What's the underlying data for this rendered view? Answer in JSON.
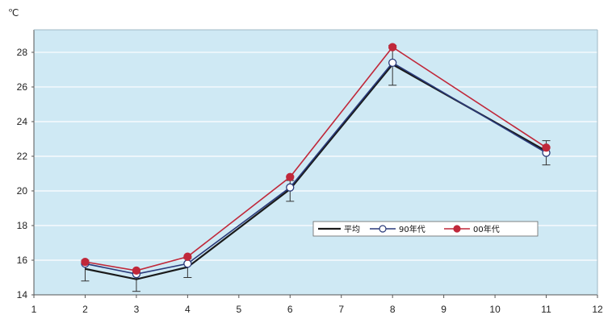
{
  "chart_data": {
    "type": "line",
    "y_unit": "℃",
    "x": [
      2,
      3,
      4,
      6,
      8,
      11
    ],
    "xlim": [
      1,
      12
    ],
    "x_ticks": [
      1,
      2,
      3,
      4,
      5,
      6,
      7,
      8,
      9,
      10,
      11,
      12
    ],
    "ylim": [
      14,
      29.3
    ],
    "y_ticks": [
      14,
      16,
      18,
      20,
      22,
      24,
      26,
      28
    ],
    "grid": true,
    "legend_position": "center-right",
    "series": [
      {
        "name": "平均",
        "values": [
          15.5,
          14.9,
          15.6,
          20.1,
          27.3,
          22.3
        ],
        "color": "#1a1a1a",
        "marker": "none",
        "error_low": [
          14.8,
          14.2,
          15.0,
          19.4,
          26.1,
          21.5
        ],
        "error_high": [
          16.0,
          15.3,
          16.1,
          20.6,
          28.4,
          22.9
        ]
      },
      {
        "name": "90年代",
        "values": [
          15.8,
          15.2,
          15.8,
          20.2,
          27.4,
          22.2
        ],
        "color": "#2a3a7a",
        "marker": "open-circle"
      },
      {
        "name": "00年代",
        "values": [
          15.9,
          15.4,
          16.2,
          20.8,
          28.3,
          22.5
        ],
        "color": "#c0283a",
        "marker": "filled-circle"
      }
    ],
    "colors": {
      "plot_background": "#cfe9f4",
      "grid": "#ffffff",
      "axis": "#555555"
    }
  }
}
